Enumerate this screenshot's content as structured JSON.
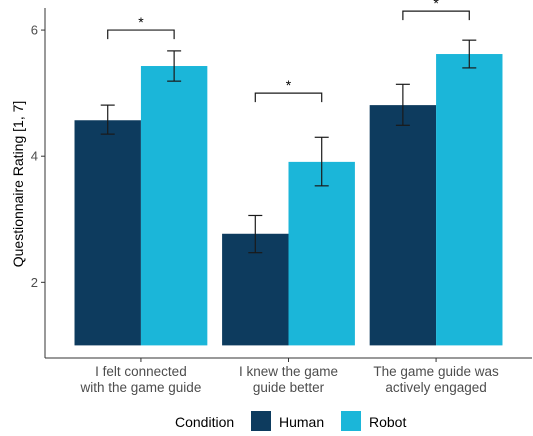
{
  "chart_data": {
    "type": "bar",
    "ylabel": "Questionnaire Rating [1, 7]",
    "ylim": [
      0.8,
      6.35
    ],
    "bar_base": 1,
    "yticks": [
      "2",
      "4",
      "6"
    ],
    "categories": [
      [
        "I felt connected",
        "with the game guide"
      ],
      [
        "I knew the game",
        "guide better"
      ],
      [
        "The game guide was",
        "actively engaged"
      ]
    ],
    "series": [
      {
        "name": "Human",
        "color": "#0d3b5e",
        "values": [
          4.57,
          2.77,
          4.81
        ],
        "err_low": [
          4.35,
          2.47,
          4.49
        ],
        "err_high": [
          4.81,
          3.06,
          5.14
        ]
      },
      {
        "name": "Robot",
        "color": "#1bb6d9",
        "values": [
          5.43,
          3.91,
          5.62
        ],
        "err_low": [
          5.19,
          3.53,
          5.4
        ],
        "err_high": [
          5.67,
          4.3,
          5.84
        ]
      }
    ],
    "significance": [
      {
        "category_index": 0,
        "label": "*",
        "level": 6.0
      },
      {
        "category_index": 1,
        "label": "*",
        "level": 5.0
      },
      {
        "category_index": 2,
        "label": "*",
        "level": 6.3
      }
    ],
    "legend": {
      "title": "Condition",
      "position": "bottom"
    },
    "grid": false
  }
}
